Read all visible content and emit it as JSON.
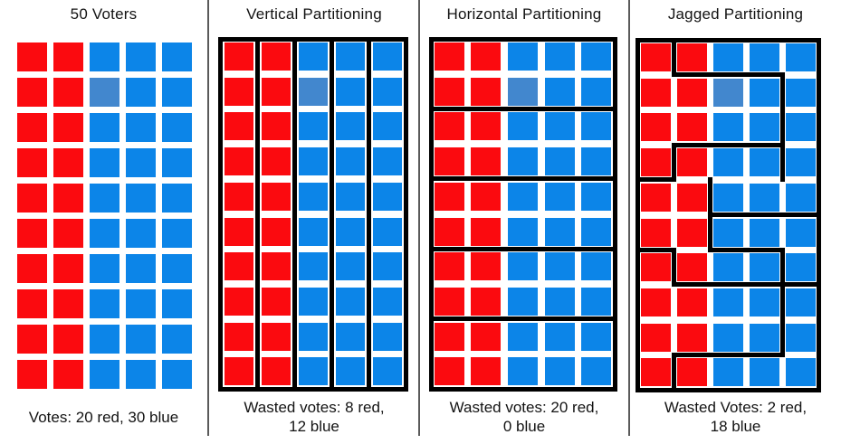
{
  "colors": {
    "red": "#fb0a0f",
    "blue": "#0c85e8",
    "light_blue": "#4287ce",
    "district_line": "#000000",
    "divider": "#5a5a5a",
    "text": "#131313"
  },
  "grid": {
    "rows": 10,
    "cols": 5,
    "red_cols": [
      1,
      2
    ],
    "blue_cols": [
      3,
      4,
      5
    ],
    "light_cell": {
      "row": 2,
      "col": 3
    }
  },
  "panels": [
    {
      "id": "voters",
      "title": "50 Voters",
      "caption_lines": [
        "Votes: 20 red, 30 blue"
      ],
      "partition": "none",
      "segments": []
    },
    {
      "id": "vertical",
      "title": "Vertical Partitioning",
      "caption_lines": [
        "Wasted votes: 8 red,",
        "12 blue"
      ],
      "partition": "vertical",
      "segments": [
        {
          "o": "v",
          "at": 1,
          "from": 0,
          "to": 10
        },
        {
          "o": "v",
          "at": 2,
          "from": 0,
          "to": 10
        },
        {
          "o": "v",
          "at": 3,
          "from": 0,
          "to": 10
        },
        {
          "o": "v",
          "at": 4,
          "from": 0,
          "to": 10
        }
      ]
    },
    {
      "id": "horizontal",
      "title": "Horizontal Partitioning",
      "caption_lines": [
        "Wasted votes: 20 red,",
        "0 blue"
      ],
      "partition": "horizontal",
      "segments": [
        {
          "o": "h",
          "at": 2,
          "from": 0,
          "to": 5
        },
        {
          "o": "h",
          "at": 4,
          "from": 0,
          "to": 5
        },
        {
          "o": "h",
          "at": 6,
          "from": 0,
          "to": 5
        },
        {
          "o": "h",
          "at": 8,
          "from": 0,
          "to": 5
        }
      ]
    },
    {
      "id": "jagged",
      "title": "Jagged Partitioning",
      "caption_lines": [
        "Wasted Votes: 2 red,",
        "18 blue"
      ],
      "partition": "jagged",
      "segments": [
        {
          "o": "v",
          "at": 1,
          "from": 0,
          "to": 1
        },
        {
          "o": "h",
          "at": 1,
          "from": 1,
          "to": 4
        },
        {
          "o": "v",
          "at": 4,
          "from": 1,
          "to": 4
        },
        {
          "o": "h",
          "at": 3,
          "from": 1,
          "to": 4
        },
        {
          "o": "v",
          "at": 1,
          "from": 3,
          "to": 4
        },
        {
          "o": "h",
          "at": 4,
          "from": 0,
          "to": 1
        },
        {
          "o": "v",
          "at": 2,
          "from": 4,
          "to": 6
        },
        {
          "o": "h",
          "at": 5,
          "from": 2,
          "to": 5
        },
        {
          "o": "h",
          "at": 6,
          "from": 2,
          "to": 4
        },
        {
          "o": "v",
          "at": 4,
          "from": 6,
          "to": 7
        },
        {
          "o": "h",
          "at": 7,
          "from": 4,
          "to": 5
        },
        {
          "o": "h",
          "at": 6,
          "from": 0,
          "to": 1
        },
        {
          "o": "v",
          "at": 1,
          "from": 6,
          "to": 7
        },
        {
          "o": "h",
          "at": 7,
          "from": 1,
          "to": 4
        },
        {
          "o": "v",
          "at": 4,
          "from": 7,
          "to": 9
        },
        {
          "o": "h",
          "at": 9,
          "from": 1,
          "to": 4
        },
        {
          "o": "v",
          "at": 1,
          "from": 9,
          "to": 10
        }
      ]
    }
  ]
}
